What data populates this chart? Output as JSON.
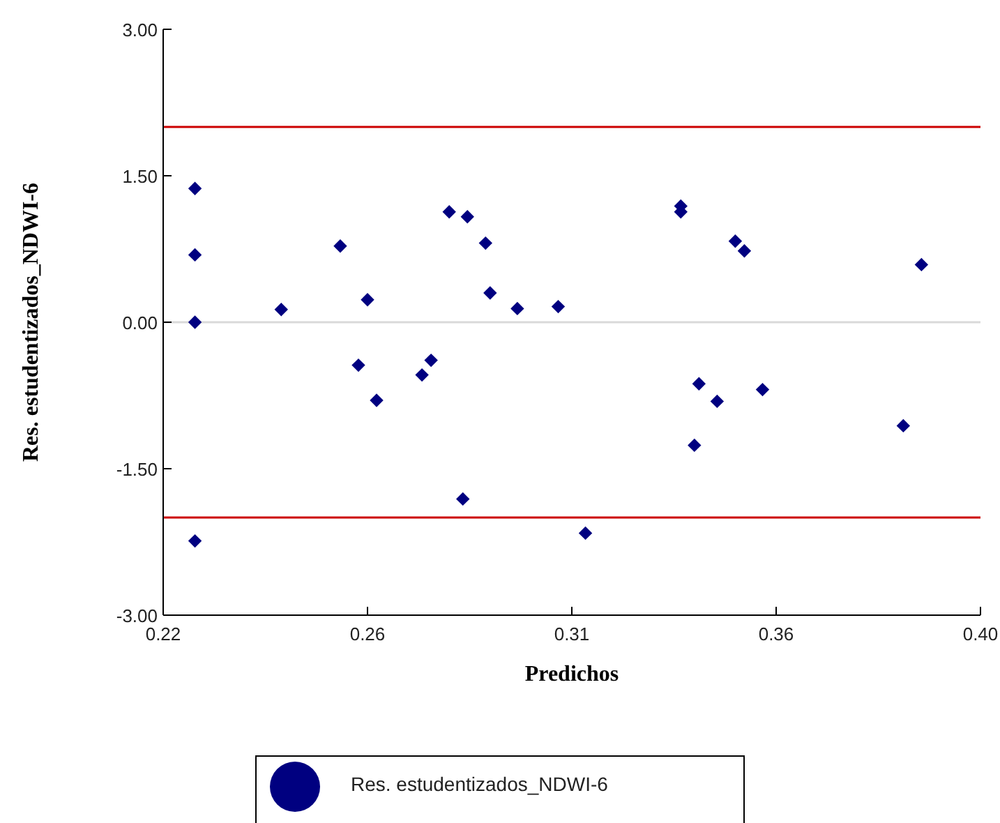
{
  "chart_data": {
    "type": "scatter",
    "xlabel": "Predichos",
    "ylabel": "Res. estudentizados_NDWI-6",
    "xlim": [
      0.22,
      0.4
    ],
    "xticks": [
      {
        "value": 0.22,
        "label": "0.22"
      },
      {
        "value": 0.265,
        "label": "0.26"
      },
      {
        "value": 0.31,
        "label": "0.31"
      },
      {
        "value": 0.355,
        "label": "0.36"
      },
      {
        "value": 0.4,
        "label": "0.40"
      }
    ],
    "ylim": [
      -3,
      3
    ],
    "yticks": [
      {
        "value": -3,
        "label": "-3.00"
      },
      {
        "value": -1.5,
        "label": "-1.50"
      },
      {
        "value": 0,
        "label": "0.00"
      },
      {
        "value": 1.5,
        "label": "1.50"
      },
      {
        "value": 3,
        "label": "3.00"
      }
    ],
    "marker": "diamond",
    "legend": "bottom",
    "grid": false,
    "ref_lines": [
      {
        "axis": "y",
        "value": 2,
        "color": "#cc0000"
      },
      {
        "axis": "y",
        "value": -2,
        "color": "#cc0000"
      },
      {
        "axis": "y",
        "value": 0,
        "color": "#d9d9d9"
      }
    ],
    "series": [
      {
        "name": "Res. estudentizados_NDWI-6",
        "color": "#000080",
        "x": [
          0.227,
          0.227,
          0.227,
          0.227,
          0.246,
          0.259,
          0.265,
          0.283,
          0.287,
          0.291,
          0.292,
          0.298,
          0.307,
          0.334,
          0.334,
          0.346,
          0.348,
          0.387,
          0.263,
          0.267,
          0.277,
          0.279,
          0.286,
          0.313,
          0.338,
          0.337,
          0.342,
          0.352,
          0.383
        ],
        "values": [
          1.37,
          0.69,
          0,
          -2.24,
          0.13,
          0.78,
          0.23,
          1.13,
          1.08,
          0.81,
          0.3,
          0.14,
          0.16,
          1.19,
          1.13,
          0.83,
          0.73,
          0.59,
          -0.44,
          -0.8,
          -0.54,
          -0.39,
          -1.81,
          -2.16,
          -0.63,
          -1.26,
          -0.81,
          -0.69,
          -1.06
        ]
      }
    ]
  }
}
